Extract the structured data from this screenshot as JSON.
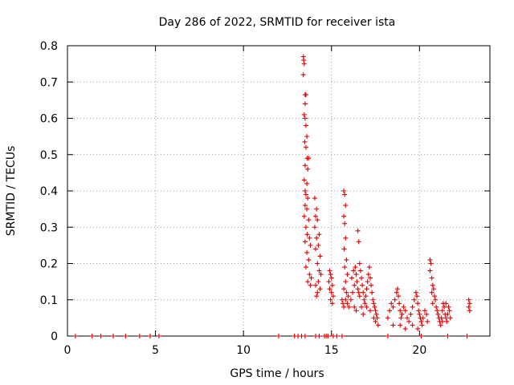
{
  "chart_data": {
    "type": "scatter",
    "title": "Day 286 of 2022, SRMTID for receiver ista",
    "xlabel": "GPS time / hours",
    "ylabel": "SRMTID / TECUs",
    "xlim": [
      0,
      24
    ],
    "ylim": [
      0,
      0.8
    ],
    "xticks": [
      0,
      5,
      10,
      15,
      20
    ],
    "yticks": [
      0,
      0.1,
      0.2,
      0.3,
      0.4,
      0.5,
      0.6,
      0.7,
      0.8
    ],
    "xtick_labels": [
      "0",
      "5",
      "10",
      "15",
      "20"
    ],
    "ytick_labels": [
      "0",
      "0.1",
      "0.2",
      "0.3",
      "0.4",
      "0.5",
      "0.6",
      "0.7",
      "0.8"
    ],
    "grid": true,
    "marker": "+",
    "color": "#e00000",
    "series": [
      {
        "name": "SRMTID",
        "points": [
          [
            0.45,
            0
          ],
          [
            1.4,
            0
          ],
          [
            1.9,
            0
          ],
          [
            2.6,
            0
          ],
          [
            3.3,
            0
          ],
          [
            4.1,
            0
          ],
          [
            4.7,
            0
          ],
          [
            5.2,
            0
          ],
          [
            12.0,
            0
          ],
          [
            12.9,
            0
          ],
          [
            13.1,
            0
          ],
          [
            13.3,
            0
          ],
          [
            13.5,
            0
          ],
          [
            14.1,
            0
          ],
          [
            14.3,
            0
          ],
          [
            14.6,
            0
          ],
          [
            14.7,
            0
          ],
          [
            14.8,
            0
          ],
          [
            15.1,
            0
          ],
          [
            15.3,
            0
          ],
          [
            15.6,
            0
          ],
          [
            18.2,
            0
          ],
          [
            20.1,
            0
          ],
          [
            21.6,
            0
          ],
          [
            22.7,
            0
          ],
          [
            13.4,
            0.77
          ],
          [
            13.42,
            0.76
          ],
          [
            13.45,
            0.75
          ],
          [
            13.4,
            0.72
          ],
          [
            13.5,
            0.665
          ],
          [
            13.55,
            0.665
          ],
          [
            13.5,
            0.64
          ],
          [
            13.45,
            0.61
          ],
          [
            13.5,
            0.6
          ],
          [
            13.55,
            0.58
          ],
          [
            13.6,
            0.55
          ],
          [
            13.48,
            0.535
          ],
          [
            13.55,
            0.52
          ],
          [
            13.62,
            0.49
          ],
          [
            13.7,
            0.49
          ],
          [
            13.5,
            0.47
          ],
          [
            13.65,
            0.46
          ],
          [
            13.45,
            0.43
          ],
          [
            13.6,
            0.42
          ],
          [
            13.5,
            0.4
          ],
          [
            13.55,
            0.39
          ],
          [
            13.65,
            0.38
          ],
          [
            13.5,
            0.36
          ],
          [
            13.6,
            0.35
          ],
          [
            13.45,
            0.33
          ],
          [
            13.7,
            0.32
          ],
          [
            13.55,
            0.3
          ],
          [
            13.62,
            0.28
          ],
          [
            13.75,
            0.27
          ],
          [
            13.5,
            0.26
          ],
          [
            13.8,
            0.25
          ],
          [
            13.6,
            0.23
          ],
          [
            13.7,
            0.21
          ],
          [
            13.55,
            0.19
          ],
          [
            13.75,
            0.17
          ],
          [
            13.85,
            0.16
          ],
          [
            13.65,
            0.15
          ],
          [
            13.8,
            0.14
          ],
          [
            14.05,
            0.38
          ],
          [
            14.15,
            0.35
          ],
          [
            14.1,
            0.33
          ],
          [
            14.2,
            0.32
          ],
          [
            14.05,
            0.3
          ],
          [
            14.3,
            0.28
          ],
          [
            14.15,
            0.27
          ],
          [
            14.25,
            0.25
          ],
          [
            14.1,
            0.24
          ],
          [
            14.35,
            0.22
          ],
          [
            14.2,
            0.2
          ],
          [
            14.3,
            0.18
          ],
          [
            14.4,
            0.17
          ],
          [
            14.25,
            0.15
          ],
          [
            14.1,
            0.14
          ],
          [
            14.35,
            0.13
          ],
          [
            14.2,
            0.12
          ],
          [
            14.15,
            0.11
          ],
          [
            14.9,
            0.18
          ],
          [
            14.95,
            0.17
          ],
          [
            15.0,
            0.16
          ],
          [
            14.85,
            0.15
          ],
          [
            15.05,
            0.14
          ],
          [
            14.9,
            0.13
          ],
          [
            15.0,
            0.12
          ],
          [
            15.1,
            0.11
          ],
          [
            14.95,
            0.1
          ],
          [
            15.05,
            0.09
          ],
          [
            15.7,
            0.4
          ],
          [
            15.75,
            0.39
          ],
          [
            15.8,
            0.36
          ],
          [
            15.7,
            0.33
          ],
          [
            15.75,
            0.31
          ],
          [
            15.8,
            0.27
          ],
          [
            15.72,
            0.24
          ],
          [
            15.85,
            0.21
          ],
          [
            15.75,
            0.19
          ],
          [
            15.9,
            0.17
          ],
          [
            15.8,
            0.15
          ],
          [
            15.7,
            0.13
          ],
          [
            15.85,
            0.12
          ],
          [
            15.95,
            0.11
          ],
          [
            15.6,
            0.1
          ],
          [
            15.65,
            0.09
          ],
          [
            15.7,
            0.08
          ],
          [
            15.8,
            0.1
          ],
          [
            15.9,
            0.09
          ],
          [
            16.0,
            0.08
          ],
          [
            16.1,
            0.1
          ],
          [
            16.2,
            0.12
          ],
          [
            16.3,
            0.14
          ],
          [
            16.15,
            0.16
          ],
          [
            16.25,
            0.18
          ],
          [
            16.35,
            0.19
          ],
          [
            16.4,
            0.17
          ],
          [
            16.45,
            0.15
          ],
          [
            16.5,
            0.13
          ],
          [
            16.55,
            0.12
          ],
          [
            16.6,
            0.11
          ],
          [
            16.5,
            0.29
          ],
          [
            16.55,
            0.26
          ],
          [
            16.6,
            0.2
          ],
          [
            16.65,
            0.18
          ],
          [
            16.7,
            0.16
          ],
          [
            16.75,
            0.14
          ],
          [
            16.8,
            0.12
          ],
          [
            16.85,
            0.1
          ],
          [
            16.9,
            0.09
          ],
          [
            16.95,
            0.11
          ],
          [
            17.0,
            0.13
          ],
          [
            17.05,
            0.15
          ],
          [
            17.1,
            0.17
          ],
          [
            17.15,
            0.19
          ],
          [
            17.2,
            0.16
          ],
          [
            17.25,
            0.14
          ],
          [
            17.3,
            0.12
          ],
          [
            17.35,
            0.1
          ],
          [
            17.4,
            0.09
          ],
          [
            17.45,
            0.08
          ],
          [
            17.5,
            0.07
          ],
          [
            17.55,
            0.06
          ],
          [
            17.6,
            0.05
          ],
          [
            16.3,
            0.08
          ],
          [
            16.4,
            0.07
          ],
          [
            16.7,
            0.08
          ],
          [
            16.8,
            0.06
          ],
          [
            17.0,
            0.08
          ],
          [
            17.2,
            0.07
          ],
          [
            17.4,
            0.05
          ],
          [
            17.5,
            0.04
          ],
          [
            17.65,
            0.03
          ],
          [
            18.2,
            0.05
          ],
          [
            18.3,
            0.07
          ],
          [
            18.4,
            0.09
          ],
          [
            18.5,
            0.08
          ],
          [
            18.6,
            0.1
          ],
          [
            18.7,
            0.12
          ],
          [
            18.75,
            0.13
          ],
          [
            18.8,
            0.11
          ],
          [
            18.85,
            0.09
          ],
          [
            18.9,
            0.07
          ],
          [
            18.95,
            0.05
          ],
          [
            19.0,
            0.06
          ],
          [
            19.1,
            0.08
          ],
          [
            19.2,
            0.07
          ],
          [
            19.3,
            0.05
          ],
          [
            19.4,
            0.04
          ],
          [
            19.5,
            0.06
          ],
          [
            19.6,
            0.08
          ],
          [
            19.7,
            0.1
          ],
          [
            19.8,
            0.12
          ],
          [
            19.85,
            0.11
          ],
          [
            19.9,
            0.09
          ],
          [
            19.95,
            0.07
          ],
          [
            20.0,
            0.06
          ],
          [
            20.05,
            0.05
          ],
          [
            20.1,
            0.04
          ],
          [
            20.15,
            0.03
          ],
          [
            18.5,
            0.03
          ],
          [
            18.9,
            0.03
          ],
          [
            19.2,
            0.02
          ],
          [
            19.6,
            0.03
          ],
          [
            19.9,
            0.02
          ],
          [
            20.2,
            0.05
          ],
          [
            20.3,
            0.07
          ],
          [
            20.4,
            0.06
          ],
          [
            20.45,
            0.04
          ],
          [
            20.6,
            0.21
          ],
          [
            20.65,
            0.2
          ],
          [
            20.6,
            0.18
          ],
          [
            20.7,
            0.16
          ],
          [
            20.75,
            0.14
          ],
          [
            20.8,
            0.13
          ],
          [
            20.7,
            0.12
          ],
          [
            20.85,
            0.11
          ],
          [
            20.9,
            0.1
          ],
          [
            20.75,
            0.09
          ],
          [
            20.95,
            0.08
          ],
          [
            21.0,
            0.07
          ],
          [
            21.05,
            0.06
          ],
          [
            21.1,
            0.05
          ],
          [
            21.15,
            0.04
          ],
          [
            21.2,
            0.03
          ],
          [
            21.25,
            0.05
          ],
          [
            21.3,
            0.07
          ],
          [
            21.35,
            0.09
          ],
          [
            21.4,
            0.08
          ],
          [
            21.45,
            0.06
          ],
          [
            21.5,
            0.05
          ],
          [
            21.55,
            0.04
          ],
          [
            21.6,
            0.06
          ],
          [
            21.65,
            0.08
          ],
          [
            21.7,
            0.07
          ],
          [
            21.75,
            0.05
          ],
          [
            21.3,
            0.04
          ],
          [
            21.5,
            0.09
          ],
          [
            22.8,
            0.1
          ],
          [
            22.85,
            0.09
          ],
          [
            22.8,
            0.08
          ],
          [
            22.85,
            0.07
          ]
        ]
      }
    ]
  }
}
